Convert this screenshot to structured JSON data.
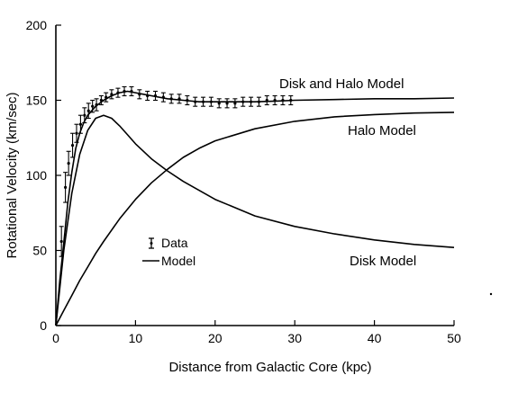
{
  "chart_data": {
    "type": "line",
    "title": "",
    "xlabel": "Distance from Galactic Core (kpc)",
    "ylabel": "Rotational Velocity (km/sec)",
    "xlim": [
      0,
      50
    ],
    "ylim": [
      0,
      200
    ],
    "x_ticks": [
      0,
      10,
      20,
      30,
      40,
      50
    ],
    "y_ticks": [
      0,
      50,
      100,
      150,
      200
    ],
    "grid": false,
    "legend_position": "center-left",
    "legend": {
      "data_label": "Data",
      "model_label": "Model"
    },
    "series": [
      {
        "name": "Disk and Halo Model",
        "kind": "line",
        "x": [
          0,
          0.5,
          1,
          1.5,
          2,
          2.5,
          3,
          3.5,
          4,
          5,
          6,
          7,
          8,
          9,
          10,
          11,
          12,
          14,
          16,
          18,
          20,
          22,
          25,
          28,
          30,
          35,
          40,
          45,
          50
        ],
        "y": [
          0,
          30,
          55,
          82,
          102,
          118,
          128,
          135,
          140,
          146,
          150,
          153,
          155,
          156,
          155,
          154,
          153,
          151,
          150,
          149,
          149,
          149,
          149,
          149.5,
          150,
          150.5,
          151,
          151,
          151.5
        ]
      },
      {
        "name": "Halo Model",
        "kind": "line",
        "x": [
          0,
          1,
          2,
          3,
          4,
          5,
          6,
          8,
          10,
          12,
          14,
          16,
          18,
          20,
          25,
          30,
          35,
          40,
          45,
          50
        ],
        "y": [
          0,
          10,
          20,
          30,
          39,
          48,
          56,
          71,
          84,
          95,
          104,
          112,
          118,
          123,
          131,
          136,
          139,
          140.5,
          141.5,
          142
        ]
      },
      {
        "name": "Disk Model",
        "kind": "line",
        "x": [
          0,
          1,
          2,
          3,
          4,
          5,
          6,
          7,
          8,
          9,
          10,
          12,
          14,
          16,
          18,
          20,
          25,
          30,
          35,
          40,
          45,
          50
        ],
        "y": [
          0,
          50,
          88,
          114,
          130,
          138,
          140,
          138,
          133,
          127,
          121,
          111,
          103,
          96,
          90,
          84,
          73,
          66,
          61,
          57,
          54,
          52
        ]
      },
      {
        "name": "Data",
        "kind": "errorbar",
        "x": [
          0.7,
          1.2,
          1.6,
          2.1,
          2.6,
          3.1,
          3.6,
          4.1,
          4.6,
          5.1,
          5.7,
          6.3,
          7,
          7.8,
          8.6,
          9.5,
          10.5,
          11.5,
          12.5,
          13.5,
          14.5,
          15.5,
          16.5,
          17.5,
          18.5,
          19.5,
          20.5,
          21.5,
          22.5,
          23.5,
          24.5,
          25.5,
          26.5,
          27.5,
          28.5,
          29.5
        ],
        "y": [
          56,
          92,
          108,
          120,
          128,
          134,
          140,
          143,
          146,
          147,
          150,
          152,
          154,
          155,
          156,
          156,
          154,
          153,
          153,
          152,
          151,
          151,
          150,
          149,
          149,
          149,
          148,
          148,
          148,
          149,
          149,
          149,
          150,
          150,
          150,
          150
        ],
        "err": [
          10,
          10,
          8,
          8,
          6,
          6,
          5,
          5,
          4,
          4,
          3,
          3,
          3,
          3,
          3,
          3,
          3,
          3,
          3,
          3,
          3,
          3,
          3,
          3,
          3,
          3,
          3,
          3,
          3,
          3,
          3,
          3,
          3,
          3,
          3,
          3
        ]
      }
    ],
    "annotations": [
      "Disk and Halo Model",
      "Halo Model",
      "Disk Model"
    ]
  }
}
